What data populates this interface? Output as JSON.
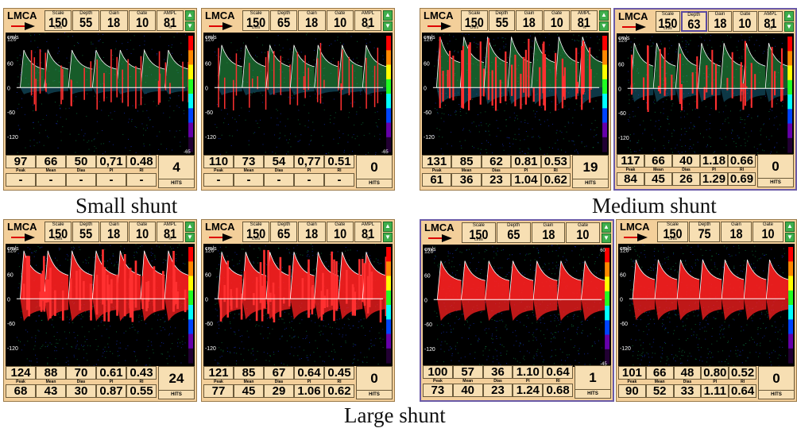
{
  "colors": {
    "panel_bg": "#f3cf9a",
    "spectrum_low": "#1e90ff",
    "spectrum_mid": "#2ecc40",
    "spectrum_high": "#ff1a1a",
    "frame": "#6a5aa8"
  },
  "captions": {
    "small": "Small shunt",
    "medium": "Medium shunt",
    "large": "Large shunt"
  },
  "common": {
    "vessel": "LMCA",
    "param_labels": {
      "scale": "Scale",
      "depth": "Depth",
      "gain": "Gain",
      "gate": "Gate",
      "ampl": "AMPL"
    },
    "param_units": {
      "scale": "cm/s",
      "ampl": "%"
    },
    "metric_labels": [
      "Peak",
      "Mean",
      "Dias",
      "PI",
      "RI"
    ],
    "hits_label": "HITS",
    "axis_unit": "cm/s",
    "scroll_up_icon": "chevron-up-icon",
    "scroll_down_icon": "chevron-down-icon",
    "probe_icon": "arrow-right-icon"
  },
  "panels": [
    {
      "id": "p1",
      "group": "small",
      "scale": "150",
      "depth": "55",
      "gain": "18",
      "gate": "10",
      "ampl": "81",
      "row1": [
        "97",
        "66",
        "50",
        "0,71",
        "0.48"
      ],
      "row2": [
        "-",
        "-",
        "-",
        "-",
        "-"
      ],
      "hits": "4",
      "ticks": [
        "120",
        "60",
        "0",
        "-60",
        "-120"
      ],
      "colorbar": [
        "",
        "-65"
      ],
      "intensity": 0.3
    },
    {
      "id": "p2",
      "group": "small",
      "scale": "150",
      "depth": "65",
      "gain": "18",
      "gate": "10",
      "ampl": "81",
      "row1": [
        "110",
        "73",
        "54",
        "0,77",
        "0.51"
      ],
      "row2": [
        "-",
        "-",
        "-",
        "-",
        "-"
      ],
      "hits": "0",
      "ticks": [
        "120",
        "60",
        "0",
        "-60",
        "-120"
      ],
      "colorbar": [
        "",
        "-65"
      ],
      "intensity": 0.25
    },
    {
      "id": "p3",
      "group": "medium",
      "scale": "150",
      "depth": "55",
      "gain": "18",
      "gate": "10",
      "ampl": "81",
      "row1": [
        "131",
        "85",
        "62",
        "0.81",
        "0.53"
      ],
      "row2": [
        "61",
        "36",
        "23",
        "1.04",
        "0.62"
      ],
      "hits": "19",
      "ticks": [
        "120",
        "60",
        "0",
        "-60",
        "-120"
      ],
      "colorbar": [
        "",
        ""
      ],
      "intensity": 0.6
    },
    {
      "id": "p4",
      "group": "medium",
      "scale": "150",
      "depth": "63",
      "gain": "18",
      "gate": "10",
      "ampl": "81",
      "row1": [
        "117",
        "66",
        "40",
        "1.18",
        "0.66"
      ],
      "row2": [
        "84",
        "45",
        "26",
        "1.29",
        "0.69"
      ],
      "hits": "0",
      "ticks": [
        "120",
        "60",
        "0",
        "-60",
        "-120"
      ],
      "colorbar": [
        "",
        ""
      ],
      "intensity": 0.55
    },
    {
      "id": "p5",
      "group": "large",
      "scale": "150",
      "depth": "55",
      "gain": "18",
      "gate": "10",
      "ampl": "81",
      "row1": [
        "124",
        "88",
        "70",
        "0.61",
        "0.43"
      ],
      "row2": [
        "68",
        "43",
        "30",
        "0.87",
        "0.55"
      ],
      "hits": "24",
      "ticks": [
        "120",
        "60",
        "0",
        "-60",
        "-120"
      ],
      "colorbar": [
        "",
        ""
      ],
      "intensity": 0.85
    },
    {
      "id": "p6",
      "group": "large",
      "scale": "150",
      "depth": "65",
      "gain": "18",
      "gate": "10",
      "ampl": "81",
      "row1": [
        "121",
        "85",
        "67",
        "0.64",
        "0.45"
      ],
      "row2": [
        "77",
        "45",
        "29",
        "1.06",
        "0.62"
      ],
      "hits": "0",
      "ticks": [
        "120",
        "60",
        "0",
        "-60",
        "-120"
      ],
      "colorbar": [
        "",
        ""
      ],
      "intensity": 0.8
    },
    {
      "id": "p7",
      "group": "large",
      "scale": "150",
      "depth": "65",
      "gain": "18",
      "gate": "10",
      "ampl": "",
      "row1": [
        "100",
        "57",
        "36",
        "1.10",
        "0.64"
      ],
      "row2": [
        "73",
        "40",
        "23",
        "1.24",
        "0.68"
      ],
      "hits": "1",
      "ticks": [
        "120",
        "60",
        "0",
        "-60",
        "-120"
      ],
      "colorbar": [
        "60",
        "-45"
      ],
      "intensity": 1.0
    },
    {
      "id": "p8",
      "group": "large",
      "scale": "150",
      "depth": "75",
      "gain": "18",
      "gate": "10",
      "ampl": "",
      "row1": [
        "101",
        "66",
        "48",
        "0.80",
        "0.52"
      ],
      "row2": [
        "90",
        "52",
        "33",
        "1.11",
        "0.64"
      ],
      "hits": "0",
      "ticks": [
        "120",
        "60",
        "0",
        "-60",
        "-120"
      ],
      "colorbar": [
        "",
        ""
      ],
      "intensity": 1.0
    }
  ]
}
